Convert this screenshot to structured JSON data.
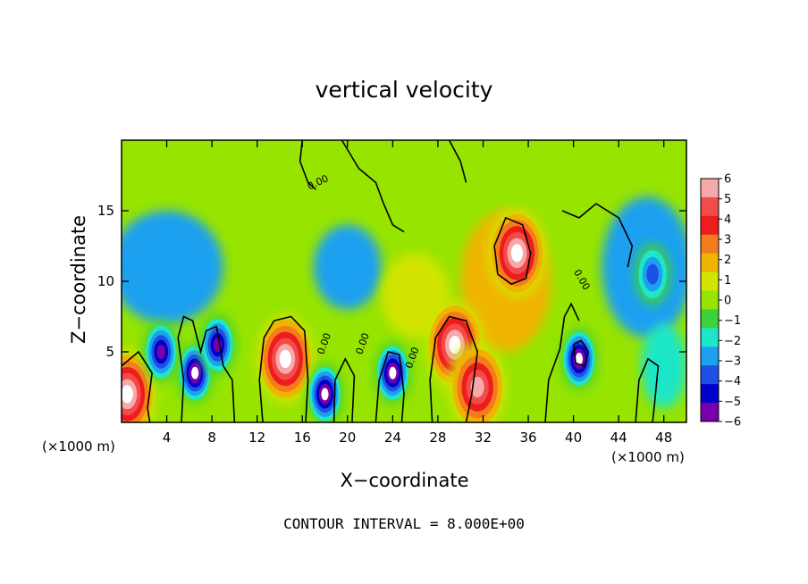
{
  "chart_data": {
    "type": "heatmap",
    "title": "vertical velocity",
    "xlabel": "X−coordinate",
    "ylabel": "Z−coordinate",
    "x_unit": "(×1000 m)",
    "xlim": [
      0,
      50
    ],
    "ylim": [
      0,
      20
    ],
    "x_ticks": [
      4,
      8,
      12,
      16,
      20,
      24,
      28,
      32,
      36,
      40,
      44,
      48
    ],
    "y_ticks": [
      5,
      10,
      15
    ],
    "colorbar": {
      "ticks": [
        6,
        5,
        4,
        3,
        2,
        1,
        0,
        -1,
        -2,
        -3,
        -4,
        -5,
        -6
      ],
      "tick_labels": [
        "6",
        "5",
        "4",
        "3",
        "2",
        "1",
        "0",
        "−1",
        "−2",
        "−3",
        "−4",
        "−5",
        "−6"
      ],
      "colors": [
        "#f7a8a8",
        "#f34a4a",
        "#ee1c1c",
        "#f47c1c",
        "#f0b400",
        "#d2e400",
        "#96e400",
        "#3cd23c",
        "#1ee6c8",
        "#1ea0f0",
        "#1e50e6",
        "#0000c8",
        "#7800aa"
      ]
    },
    "contour_interval_text": "CONTOUR INTERVAL = 8.000E+00",
    "contour_label": "0.00",
    "features": [
      {
        "x": 14.5,
        "z": 4.5,
        "value": 8,
        "kind": "updraft"
      },
      {
        "x": 29.5,
        "z": 5.5,
        "value": 8,
        "kind": "updraft"
      },
      {
        "x": 35.0,
        "z": 12.0,
        "value": 8,
        "kind": "updraft"
      },
      {
        "x": 0.5,
        "z": 2.0,
        "value": 8,
        "kind": "updraft"
      },
      {
        "x": 31.5,
        "z": 2.5,
        "value": 6,
        "kind": "updraft"
      },
      {
        "x": 6.5,
        "z": 3.5,
        "value": -8,
        "kind": "downdraft"
      },
      {
        "x": 3.5,
        "z": 5.0,
        "value": -6,
        "kind": "downdraft"
      },
      {
        "x": 8.5,
        "z": 5.5,
        "value": -6,
        "kind": "downdraft"
      },
      {
        "x": 18.0,
        "z": 2.0,
        "value": -7,
        "kind": "downdraft"
      },
      {
        "x": 24.0,
        "z": 3.5,
        "value": -8,
        "kind": "downdraft"
      },
      {
        "x": 40.5,
        "z": 4.5,
        "value": -7,
        "kind": "downdraft"
      },
      {
        "x": 47.0,
        "z": 10.5,
        "value": -4,
        "kind": "downdraft"
      }
    ]
  }
}
